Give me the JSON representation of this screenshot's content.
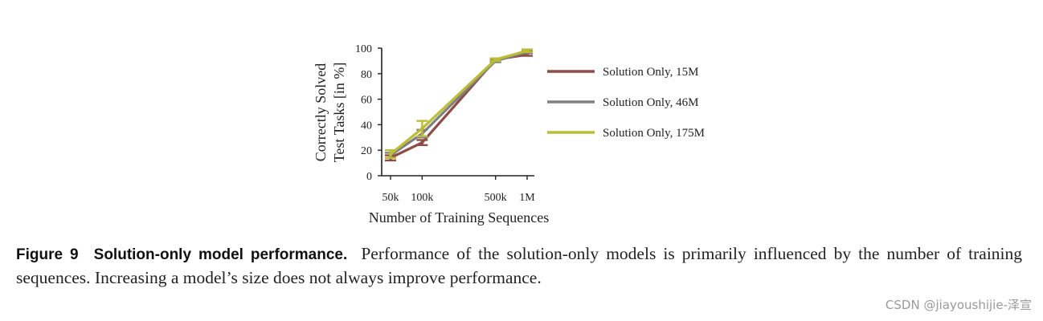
{
  "chart_data": {
    "type": "line",
    "title": "",
    "xlabel": "Number of Training Sequences",
    "ylabel_lines": [
      "Correctly Solved",
      "Test Tasks [in %]"
    ],
    "x_scale": "log",
    "x": [
      50000,
      100000,
      500000,
      1000000
    ],
    "x_tick_labels": [
      "50k",
      "100k",
      "500k",
      "1M"
    ],
    "ylim": [
      0,
      100
    ],
    "y_ticks": [
      0,
      20,
      40,
      60,
      80,
      100
    ],
    "grid": false,
    "legend_position": "right",
    "series": [
      {
        "name": "Solution Only, 15M",
        "color": "#8e4c45",
        "values": [
          14,
          26,
          91,
          95
        ],
        "errors": [
          2,
          2,
          1,
          1
        ]
      },
      {
        "name": "Solution Only, 46M",
        "color": "#808080",
        "values": [
          16,
          33,
          90,
          97
        ],
        "errors": [
          2,
          3,
          1,
          1
        ]
      },
      {
        "name": "Solution Only, 175M",
        "color": "#bcbd35",
        "values": [
          17,
          37,
          91,
          98
        ],
        "errors": [
          3,
          6,
          1,
          1
        ]
      }
    ]
  },
  "caption": {
    "label": "Figure 9",
    "title": "Solution-only model performance.",
    "text": "Performance of the solution-only models is primarily influenced by the number of training sequences. Increasing a model’s size does not always improve performance."
  },
  "watermark": "CSDN @jiayoushijie-泽宣"
}
